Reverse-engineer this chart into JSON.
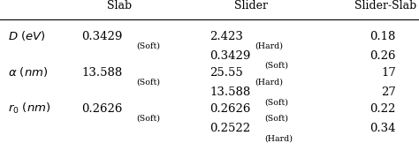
{
  "col_headers": [
    "",
    "Slab",
    "Slider",
    "Slider-Slab"
  ],
  "background_color": "#ffffff",
  "text_color": "#000000",
  "header_fontsize": 9.0,
  "value_fontsize": 9.5,
  "subscript_fontsize": 6.8,
  "label_fontsize": 9.5,
  "rows": [
    {
      "row_label": "D_eV",
      "sub_rows": [
        {
          "slab_val": "0.3429",
          "slab_sub": "(Soft)",
          "slider_val": "2.423",
          "slider_sub": "(Hard)",
          "ss_val": "0.18"
        },
        {
          "slab_val": "",
          "slab_sub": "",
          "slider_val": "0.3429",
          "slider_sub": "(Soft)",
          "ss_val": "0.26"
        }
      ]
    },
    {
      "row_label": "alpha_nm",
      "sub_rows": [
        {
          "slab_val": "13.588",
          "slab_sub": "(Soft)",
          "slider_val": "25.55",
          "slider_sub": "(Hard)",
          "ss_val": "17"
        },
        {
          "slab_val": "",
          "slab_sub": "",
          "slider_val": "13.588",
          "slider_sub": "(Soft)",
          "ss_val": "27"
        }
      ]
    },
    {
      "row_label": "r0_nm",
      "sub_rows": [
        {
          "slab_val": "0.2626",
          "slab_sub": "(Soft)",
          "slider_val": "0.2626",
          "slider_sub": "(Soft)",
          "ss_val": "0.22"
        },
        {
          "slab_val": "",
          "slab_sub": "",
          "slider_val": "0.2522",
          "slider_sub": "(Hard)",
          "ss_val": "0.34"
        }
      ]
    }
  ]
}
